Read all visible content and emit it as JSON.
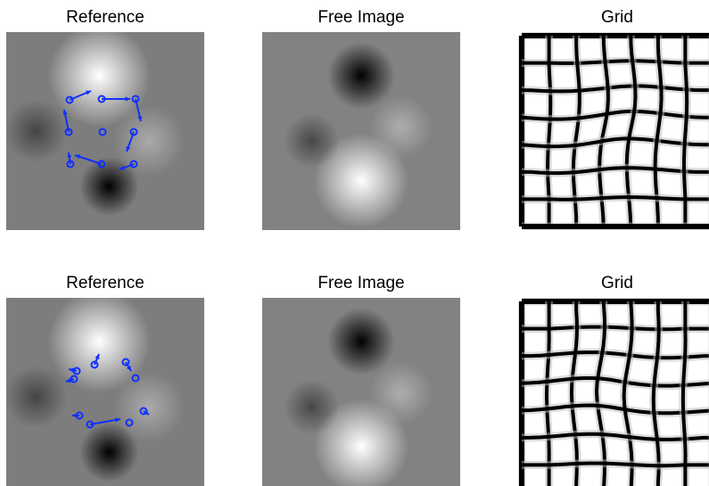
{
  "panels": [
    {
      "title": "Reference"
    },
    {
      "title": "Free Image"
    },
    {
      "title": "Grid"
    },
    {
      "title": "Reference"
    },
    {
      "title": "Free Image"
    },
    {
      "title": "Grid"
    }
  ]
}
